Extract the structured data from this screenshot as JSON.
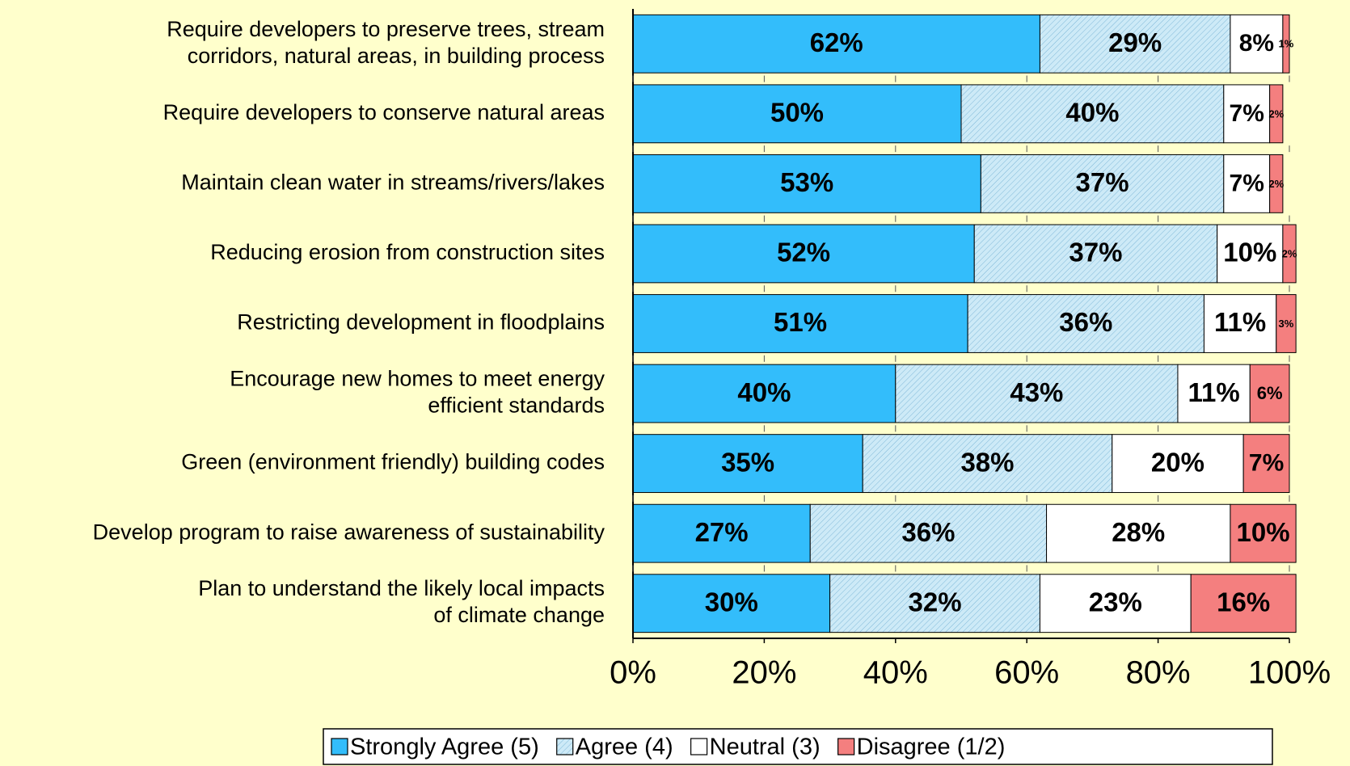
{
  "chart_data": {
    "type": "stacked_barh",
    "categories": [
      "Require developers to preserve trees, stream\ncorridors,  natural areas, in building process",
      "Require developers to conserve natural areas",
      "Maintain clean water in streams/rivers/lakes",
      "Reducing erosion from construction sites",
      "Restricting development in floodplains",
      "Encourage new homes to meet energy\nefficient standards",
      "Green (environment friendly) building codes",
      "Develop program to raise awareness of sustainability",
      "Plan to understand the likely local impacts\nof climate change"
    ],
    "series": [
      {
        "name": "Strongly Agree (5)",
        "color": "#33bdfb",
        "values": [
          62,
          50,
          53,
          52,
          51,
          40,
          35,
          27,
          30
        ],
        "value_labels": [
          "62%",
          "50%",
          "53%",
          "52%",
          "51%",
          "40%",
          "35%",
          "27%",
          "30%"
        ]
      },
      {
        "name": "Agree (4)",
        "color": "#cdeaf7",
        "pattern": "hatch",
        "values": [
          29,
          40,
          37,
          37,
          36,
          43,
          38,
          36,
          32
        ],
        "value_labels": [
          "29%",
          "40%",
          "37%",
          "37%",
          "36%",
          "43%",
          "38%",
          "36%",
          "32%"
        ]
      },
      {
        "name": "Neutral (3)",
        "color": "#ffffff",
        "values": [
          8,
          7,
          7,
          10,
          11,
          11,
          20,
          28,
          23
        ],
        "value_labels": [
          "8%",
          "7%",
          "7%",
          "10%",
          "11%",
          "11%",
          "20%",
          "28%",
          "23%"
        ]
      },
      {
        "name": "Disagree (1/2)",
        "color": "#f47f7f",
        "values": [
          1,
          2,
          2,
          2,
          3,
          6,
          7,
          10,
          16
        ],
        "value_labels": [
          "1%",
          "2%",
          "2%",
          "2%",
          "3%",
          "6%",
          "7%",
          "10%",
          "16%"
        ]
      }
    ],
    "xlim": [
      0,
      100
    ],
    "xticks": [
      {
        "value": 0,
        "label": "0%"
      },
      {
        "value": 20,
        "label": "20%"
      },
      {
        "value": 40,
        "label": "40%"
      },
      {
        "value": 60,
        "label": "60%"
      },
      {
        "value": 80,
        "label": "80%"
      },
      {
        "value": 100,
        "label": "100%"
      }
    ],
    "legend": "bottom"
  }
}
